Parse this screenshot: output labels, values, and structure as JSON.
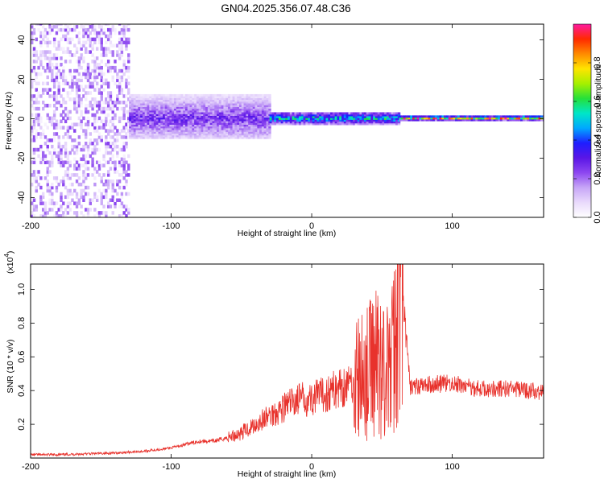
{
  "title": "GN04.2025.356.07.48.C36",
  "colors": {
    "series_line": "#e8322c",
    "cmap": [
      "#ffffff",
      "#e9dafc",
      "#c7a6f7",
      "#8d47f0",
      "#5a16e6",
      "#1e1eff",
      "#00a8ff",
      "#00e6c8",
      "#25e03a",
      "#a6f000",
      "#ffe400",
      "#ff8a00",
      "#ff2a00",
      "#ff1aa0"
    ]
  },
  "chart_data": [
    {
      "type": "heatmap",
      "xlabel": "Height of straight line (km)",
      "ylabel": "Frequency (Hz)",
      "xlim": [
        -200,
        165
      ],
      "ylim": [
        -50,
        48
      ],
      "x_ticks": [
        -200,
        -100,
        0,
        100
      ],
      "x_tick_labels": [
        "-200",
        "-100",
        "0",
        "100"
      ],
      "y_ticks": [
        -40,
        -20,
        0,
        20,
        40
      ],
      "y_tick_labels": [
        "-40",
        "-20",
        "0",
        "20",
        "40"
      ],
      "colorbar": {
        "label": "Normalized spectral amplitude",
        "range": [
          0,
          1
        ],
        "ticks": [
          0.0,
          0.2,
          0.4,
          0.6,
          0.8
        ],
        "tick_labels": [
          "0.0",
          "0.2",
          "0.4",
          "0.6",
          "0.8"
        ]
      },
      "description_regions": [
        {
          "x_range": [
            -200,
            -130
          ],
          "freq_range": [
            -50,
            48
          ],
          "amplitude": 0.1
        },
        {
          "x_range": [
            -130,
            -30
          ],
          "freq_range": [
            -10,
            12
          ],
          "amplitude": 0.3
        },
        {
          "x_range": [
            -30,
            62
          ],
          "freq_range": [
            -3,
            3
          ],
          "amplitude": 0.6
        },
        {
          "x_range": [
            62,
            165
          ],
          "freq_range": [
            -1,
            1
          ],
          "amplitude": 0.95
        }
      ]
    },
    {
      "type": "line",
      "xlabel": "Height of straight line (km)",
      "ylabel": "SNR (10 * v/v)",
      "y_scale_label": "(x10",
      "y_scale_exponent": "4",
      "y_scale_suffix": ")",
      "xlim": [
        -200,
        165
      ],
      "ylim": [
        0,
        1.15
      ],
      "x_ticks": [
        -200,
        -100,
        0,
        100
      ],
      "x_tick_labels": [
        "-200",
        "-100",
        "0",
        "100"
      ],
      "y_ticks": [
        0.2,
        0.4,
        0.6,
        0.8,
        1.0
      ],
      "y_tick_labels": [
        "0.2",
        "0.4",
        "0.6",
        "0.8",
        "1.0"
      ],
      "series": [
        {
          "x": [
            -200,
            -180,
            -160,
            -140,
            -120,
            -100,
            -90,
            -80,
            -70,
            -60,
            -50,
            -40,
            -30,
            -20,
            -10,
            0,
            10,
            20,
            30,
            40,
            45,
            50,
            55,
            60,
            63,
            70,
            80,
            90,
            100,
            120,
            140,
            165
          ],
          "values": [
            0.02,
            0.02,
            0.025,
            0.03,
            0.04,
            0.06,
            0.08,
            0.1,
            0.1,
            0.12,
            0.15,
            0.2,
            0.25,
            0.3,
            0.35,
            0.35,
            0.38,
            0.42,
            0.45,
            0.5,
            0.6,
            0.55,
            0.5,
            0.7,
            1.15,
            0.42,
            0.43,
            0.44,
            0.44,
            0.41,
            0.41,
            0.39
          ]
        }
      ]
    }
  ]
}
